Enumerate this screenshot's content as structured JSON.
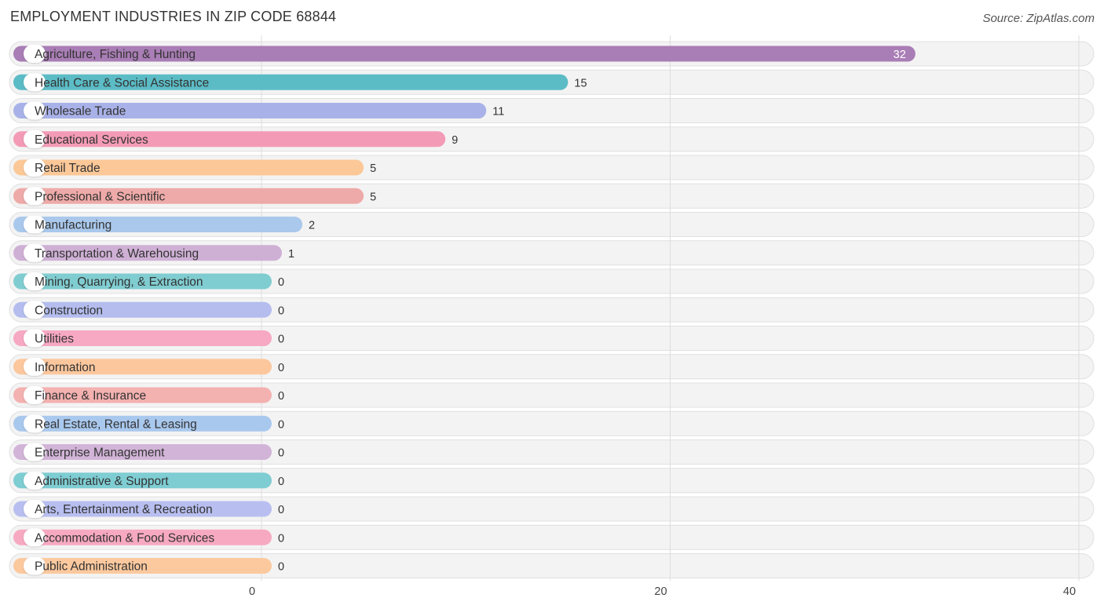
{
  "title": "EMPLOYMENT INDUSTRIES IN ZIP CODE 68844",
  "source": "Source: ZipAtlas.com",
  "chart_data": {
    "type": "bar",
    "orientation": "horizontal",
    "title": "EMPLOYMENT INDUSTRIES IN ZIP CODE 68844",
    "xlim": [
      0,
      40
    ],
    "x_ticks": [
      0,
      20,
      40
    ],
    "grid": true,
    "categories": [
      "Agriculture, Fishing & Hunting",
      "Health Care & Social Assistance",
      "Wholesale Trade",
      "Educational Services",
      "Retail Trade",
      "Professional & Scientific",
      "Manufacturing",
      "Transportation & Warehousing",
      "Mining, Quarrying, & Extraction",
      "Construction",
      "Utilities",
      "Information",
      "Finance & Insurance",
      "Real Estate, Rental & Leasing",
      "Enterprise Management",
      "Administrative & Support",
      "Arts, Entertainment & Recreation",
      "Accommodation & Food Services",
      "Public Administration"
    ],
    "values": [
      32,
      15,
      11,
      9,
      5,
      5,
      2,
      1,
      0,
      0,
      0,
      0,
      0,
      0,
      0,
      0,
      0,
      0,
      0
    ],
    "colors": [
      "#a97db5",
      "#5bbcc6",
      "#a9b2e8",
      "#f39bb6",
      "#fcc898",
      "#eeaaa8",
      "#a9c8ec",
      "#cfb0d5",
      "#80cdd1",
      "#b4bdee",
      "#f7a8c2",
      "#fcc79d",
      "#f3b1b0",
      "#a9c8ee",
      "#d2b4d8",
      "#7ecdd3",
      "#b8bff0",
      "#f7a9c2",
      "#fcc99e"
    ]
  }
}
